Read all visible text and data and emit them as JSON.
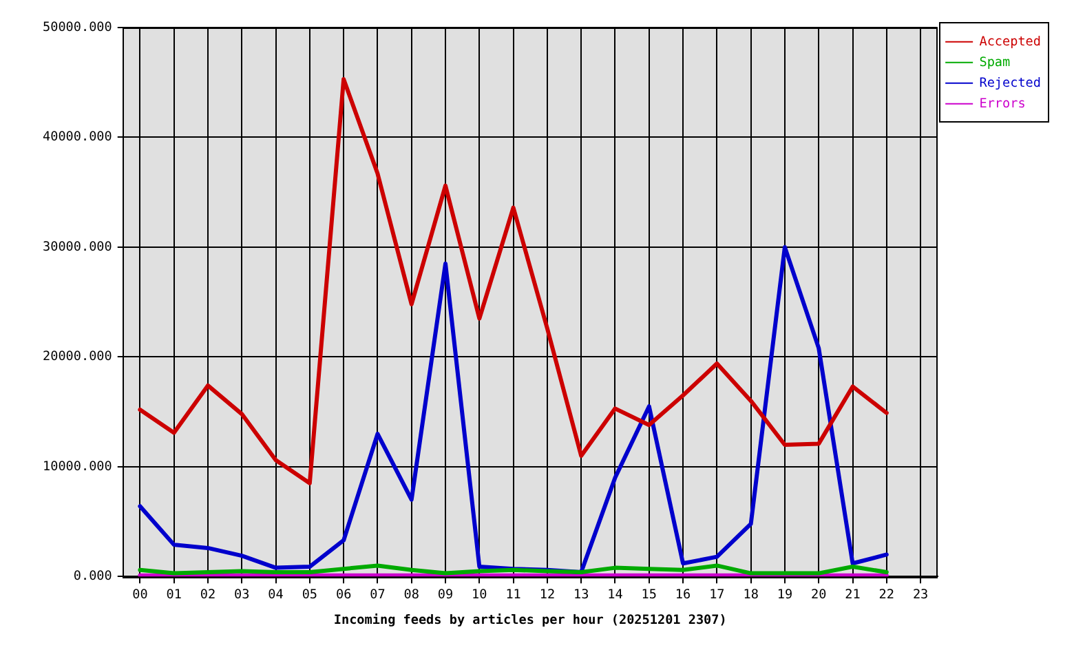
{
  "chart_data": {
    "type": "line",
    "categories": [
      "00",
      "01",
      "02",
      "03",
      "04",
      "05",
      "06",
      "07",
      "08",
      "09",
      "10",
      "11",
      "12",
      "13",
      "14",
      "15",
      "16",
      "17",
      "18",
      "19",
      "20",
      "21",
      "22",
      "23"
    ],
    "series": [
      {
        "name": "Accepted",
        "color": "#cc0000",
        "values": [
          15200,
          13100,
          17400,
          14800,
          10600,
          8500,
          45300,
          36700,
          24800,
          35600,
          23500,
          33600,
          22600,
          11000,
          15300,
          13800,
          16500,
          19400,
          16000,
          12000,
          12100,
          17300,
          14900,
          null
        ]
      },
      {
        "name": "Spam",
        "color": "#00aa00",
        "values": [
          600,
          300,
          400,
          500,
          400,
          400,
          700,
          1000,
          600,
          300,
          500,
          600,
          500,
          400,
          800,
          700,
          600,
          1000,
          300,
          300,
          300,
          900,
          400,
          null
        ]
      },
      {
        "name": "Rejected",
        "color": "#0000cc",
        "values": [
          6400,
          2900,
          2600,
          1900,
          800,
          900,
          3300,
          13000,
          7000,
          28500,
          900,
          700,
          600,
          400,
          9000,
          15500,
          1200,
          1800,
          4800,
          30000,
          20800,
          1200,
          2000,
          null
        ]
      },
      {
        "name": "Errors",
        "color": "#cc00cc",
        "values": [
          100,
          100,
          100,
          100,
          100,
          100,
          100,
          100,
          100,
          100,
          100,
          100,
          100,
          100,
          100,
          100,
          100,
          100,
          100,
          100,
          100,
          100,
          100,
          null
        ]
      }
    ],
    "xlabel": "Incoming feeds by articles per hour (20251201 2307)",
    "ylim": [
      0,
      50000
    ],
    "yticks": [
      {
        "value": 0,
        "label": "0.000"
      },
      {
        "value": 10000,
        "label": "10000.000"
      },
      {
        "value": 20000,
        "label": "20000.000"
      },
      {
        "value": 30000,
        "label": "30000.000"
      },
      {
        "value": 40000,
        "label": "40000.000"
      },
      {
        "value": 50000,
        "label": "50000.000"
      }
    ],
    "grid": true,
    "legend": "top right",
    "marker": "none"
  }
}
